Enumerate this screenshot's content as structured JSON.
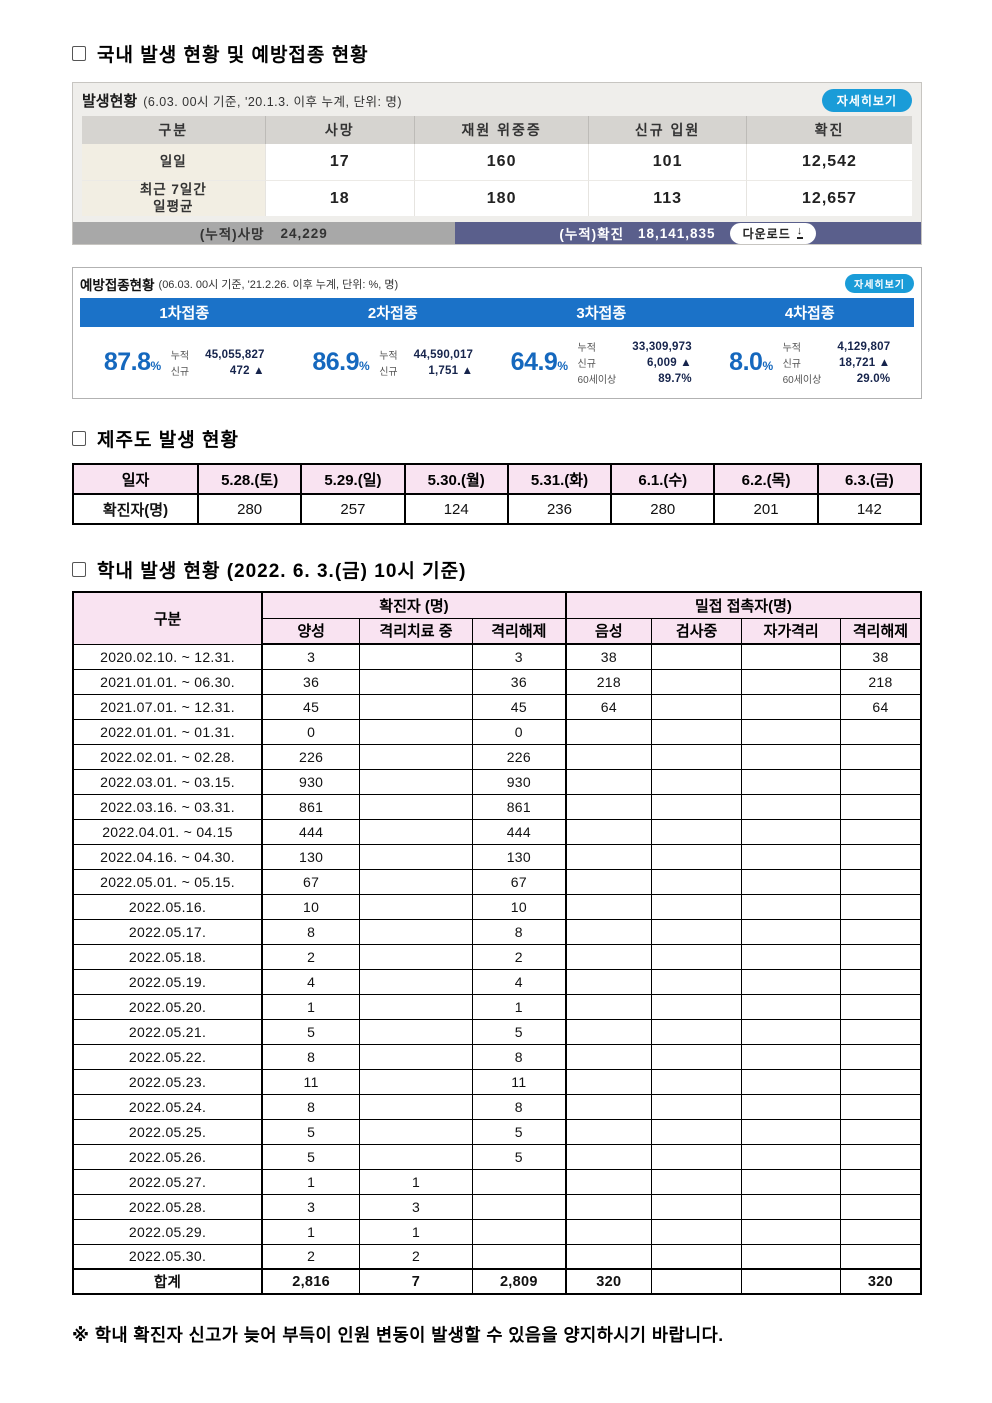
{
  "icons": {
    "download": "↓"
  },
  "section1": {
    "title": "국내 발생 현황 및 예방접종 현황"
  },
  "occurrence": {
    "title": "발생현황",
    "note": "(6.03. 00시 기준, '20.1.3. 이후 누계, 단위: 명)",
    "detail_button": "자세히보기",
    "columns": [
      "구분",
      "사망",
      "재원 위중증",
      "신규 입원",
      "확진"
    ],
    "rows": [
      {
        "label": "일일",
        "values": [
          "17",
          "160",
          "101",
          "12,542"
        ]
      },
      {
        "label": "최근 7일간\n일평균",
        "values": [
          "18",
          "180",
          "113",
          "12,657"
        ]
      }
    ],
    "cumulative": {
      "death_label": "(누적)사망",
      "death_value": "24,229",
      "confirmed_label": "(누적)확진",
      "confirmed_value": "18,141,835",
      "download_label": "다운로드"
    }
  },
  "vaccination": {
    "title": "예방접종현황",
    "note": "(06.03. 00시 기준, '21.2.26. 이후 누계, 단위: %, 명)",
    "detail_button": "자세히보기",
    "doses": [
      {
        "name": "1차접종",
        "pct": "87.8",
        "unit": "%",
        "stats": [
          {
            "label": "누적",
            "value": "45,055,827"
          },
          {
            "label": "신규",
            "value": "472 ▲"
          }
        ]
      },
      {
        "name": "2차접종",
        "pct": "86.9",
        "unit": "%",
        "stats": [
          {
            "label": "누적",
            "value": "44,590,017"
          },
          {
            "label": "신규",
            "value": "1,751 ▲"
          }
        ]
      },
      {
        "name": "3차접종",
        "pct": "64.9",
        "unit": "%",
        "stats": [
          {
            "label": "누적",
            "value": "33,309,973"
          },
          {
            "label": "신규",
            "value": "6,009 ▲"
          },
          {
            "label": "60세이상",
            "value": "89.7%"
          }
        ]
      },
      {
        "name": "4차접종",
        "pct": "8.0",
        "unit": "%",
        "stats": [
          {
            "label": "누적",
            "value": "4,129,807"
          },
          {
            "label": "신규",
            "value": "18,721 ▲"
          },
          {
            "label": "60세이상",
            "value": "29.0%"
          }
        ]
      }
    ]
  },
  "jeju": {
    "title": "제주도 발생 현황",
    "col_label": "일자",
    "row_label": "확진자(명)",
    "dates": [
      "5.28.(토)",
      "5.29.(일)",
      "5.30.(월)",
      "5.31.(화)",
      "6.1.(수)",
      "6.2.(목)",
      "6.3.(금)"
    ],
    "values": [
      "280",
      "257",
      "124",
      "236",
      "280",
      "201",
      "142"
    ]
  },
  "school": {
    "title": "학내 발생 현황 (2022. 6. 3.(금) 10시 기준)",
    "header": {
      "col1": "구분",
      "group1": "확진자 (명)",
      "group2": "밀접 접촉자(명)",
      "sub": [
        "양성",
        "격리치료 중",
        "격리해제",
        "음성",
        "검사중",
        "자가격리",
        "격리해제"
      ]
    },
    "rows": [
      [
        "2020.02.10.  ~  12.31.",
        "3",
        "",
        "3",
        "38",
        "",
        "",
        "38"
      ],
      [
        "2021.01.01.  ~  06.30.",
        "36",
        "",
        "36",
        "218",
        "",
        "",
        "218"
      ],
      [
        "2021.07.01.  ~  12.31.",
        "45",
        "",
        "45",
        "64",
        "",
        "",
        "64"
      ],
      [
        "2022.01.01.  ~  01.31.",
        "0",
        "",
        "0",
        "",
        "",
        "",
        ""
      ],
      [
        "2022.02.01.  ~  02.28.",
        "226",
        "",
        "226",
        "",
        "",
        "",
        ""
      ],
      [
        "2022.03.01.  ~  03.15.",
        "930",
        "",
        "930",
        "",
        "",
        "",
        ""
      ],
      [
        "2022.03.16.  ~  03.31.",
        "861",
        "",
        "861",
        "",
        "",
        "",
        ""
      ],
      [
        "2022.04.01.  ~  04.15",
        "444",
        "",
        "444",
        "",
        "",
        "",
        ""
      ],
      [
        "2022.04.16.  ~  04.30.",
        "130",
        "",
        "130",
        "",
        "",
        "",
        ""
      ],
      [
        "2022.05.01.  ~  05.15.",
        "67",
        "",
        "67",
        "",
        "",
        "",
        ""
      ],
      [
        "2022.05.16.",
        "10",
        "",
        "10",
        "",
        "",
        "",
        ""
      ],
      [
        "2022.05.17.",
        "8",
        "",
        "8",
        "",
        "",
        "",
        ""
      ],
      [
        "2022.05.18.",
        "2",
        "",
        "2",
        "",
        "",
        "",
        ""
      ],
      [
        "2022.05.19.",
        "4",
        "",
        "4",
        "",
        "",
        "",
        ""
      ],
      [
        "2022.05.20.",
        "1",
        "",
        "1",
        "",
        "",
        "",
        ""
      ],
      [
        "2022.05.21.",
        "5",
        "",
        "5",
        "",
        "",
        "",
        ""
      ],
      [
        "2022.05.22.",
        "8",
        "",
        "8",
        "",
        "",
        "",
        ""
      ],
      [
        "2022.05.23.",
        "11",
        "",
        "11",
        "",
        "",
        "",
        ""
      ],
      [
        "2022.05.24.",
        "8",
        "",
        "8",
        "",
        "",
        "",
        ""
      ],
      [
        "2022.05.25.",
        "5",
        "",
        "5",
        "",
        "",
        "",
        ""
      ],
      [
        "2022.05.26.",
        "5",
        "",
        "5",
        "",
        "",
        "",
        ""
      ],
      [
        "2022.05.27.",
        "1",
        "1",
        "",
        "",
        "",
        "",
        ""
      ],
      [
        "2022.05.28.",
        "3",
        "3",
        "",
        "",
        "",
        "",
        ""
      ],
      [
        "2022.05.29.",
        "1",
        "1",
        "",
        "",
        "",
        "",
        ""
      ],
      [
        "2022.05.30.",
        "2",
        "2",
        "",
        "",
        "",
        "",
        ""
      ],
      {
        "cells": [
          "합계",
          "2,816",
          "7",
          "2,809",
          "320",
          "",
          "",
          "320"
        ],
        "bold": true
      }
    ]
  },
  "footer": {
    "note": "※ 학내 확진자 신고가 늦어 부득이 인원 변동이 발생할 수 있음을 양지하시기 바랍니다."
  }
}
